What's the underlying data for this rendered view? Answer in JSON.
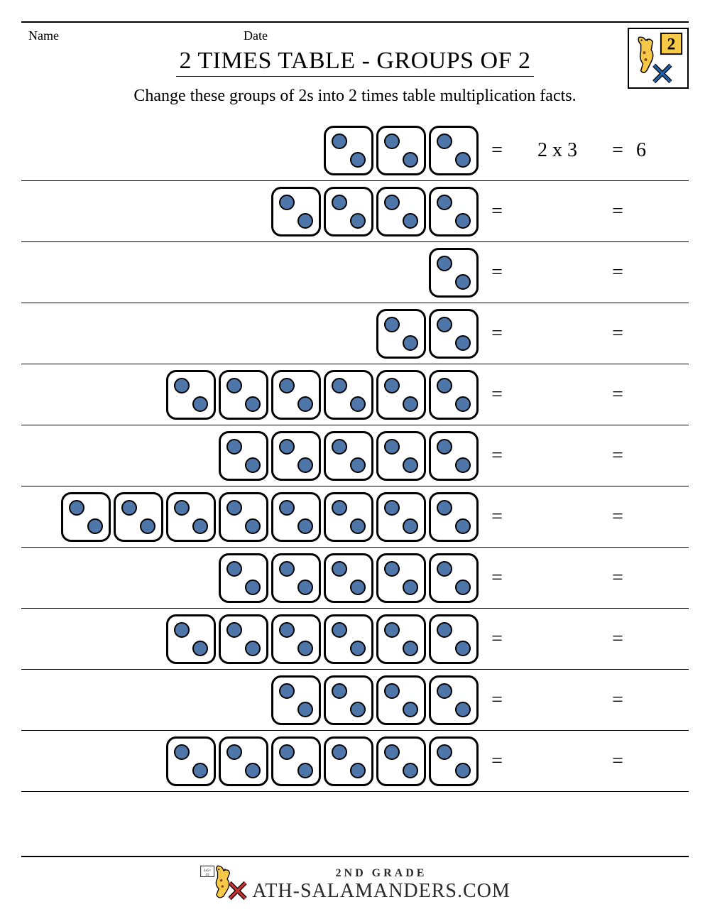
{
  "header": {
    "name_label": "Name",
    "date_label": "Date",
    "title": "2 TIMES TABLE - GROUPS OF 2",
    "instructions": "Change these groups of 2s into 2 times table multiplication facts."
  },
  "styling": {
    "dice_border_color": "#000000",
    "dice_border_radius": 14,
    "dice_size": 70,
    "pip_color": "#4f76a8",
    "pip_border_color": "#000000",
    "pip_size": 22,
    "row_border_color": "#000000",
    "background_color": "#ffffff",
    "title_fontsize": 34,
    "instruction_fontsize": 24,
    "equation_fontsize": 28,
    "label_fontsize": 18
  },
  "logo": {
    "number": "2",
    "number_bg": "#f7c948",
    "sal_color": "#f7c948"
  },
  "problems": [
    {
      "dice": 3,
      "expression": "2 x 3",
      "answer": "6"
    },
    {
      "dice": 4,
      "expression": "",
      "answer": ""
    },
    {
      "dice": 1,
      "expression": "",
      "answer": ""
    },
    {
      "dice": 2,
      "expression": "",
      "answer": ""
    },
    {
      "dice": 6,
      "expression": "",
      "answer": ""
    },
    {
      "dice": 5,
      "expression": "",
      "answer": ""
    },
    {
      "dice": 8,
      "expression": "",
      "answer": ""
    },
    {
      "dice": 5,
      "expression": "",
      "answer": ""
    },
    {
      "dice": 6,
      "expression": "",
      "answer": ""
    },
    {
      "dice": 4,
      "expression": "",
      "answer": ""
    },
    {
      "dice": 6,
      "expression": "",
      "answer": ""
    }
  ],
  "footer": {
    "grade": "2ND GRADE",
    "brand": "ATH-SALAMANDERS.COM"
  }
}
